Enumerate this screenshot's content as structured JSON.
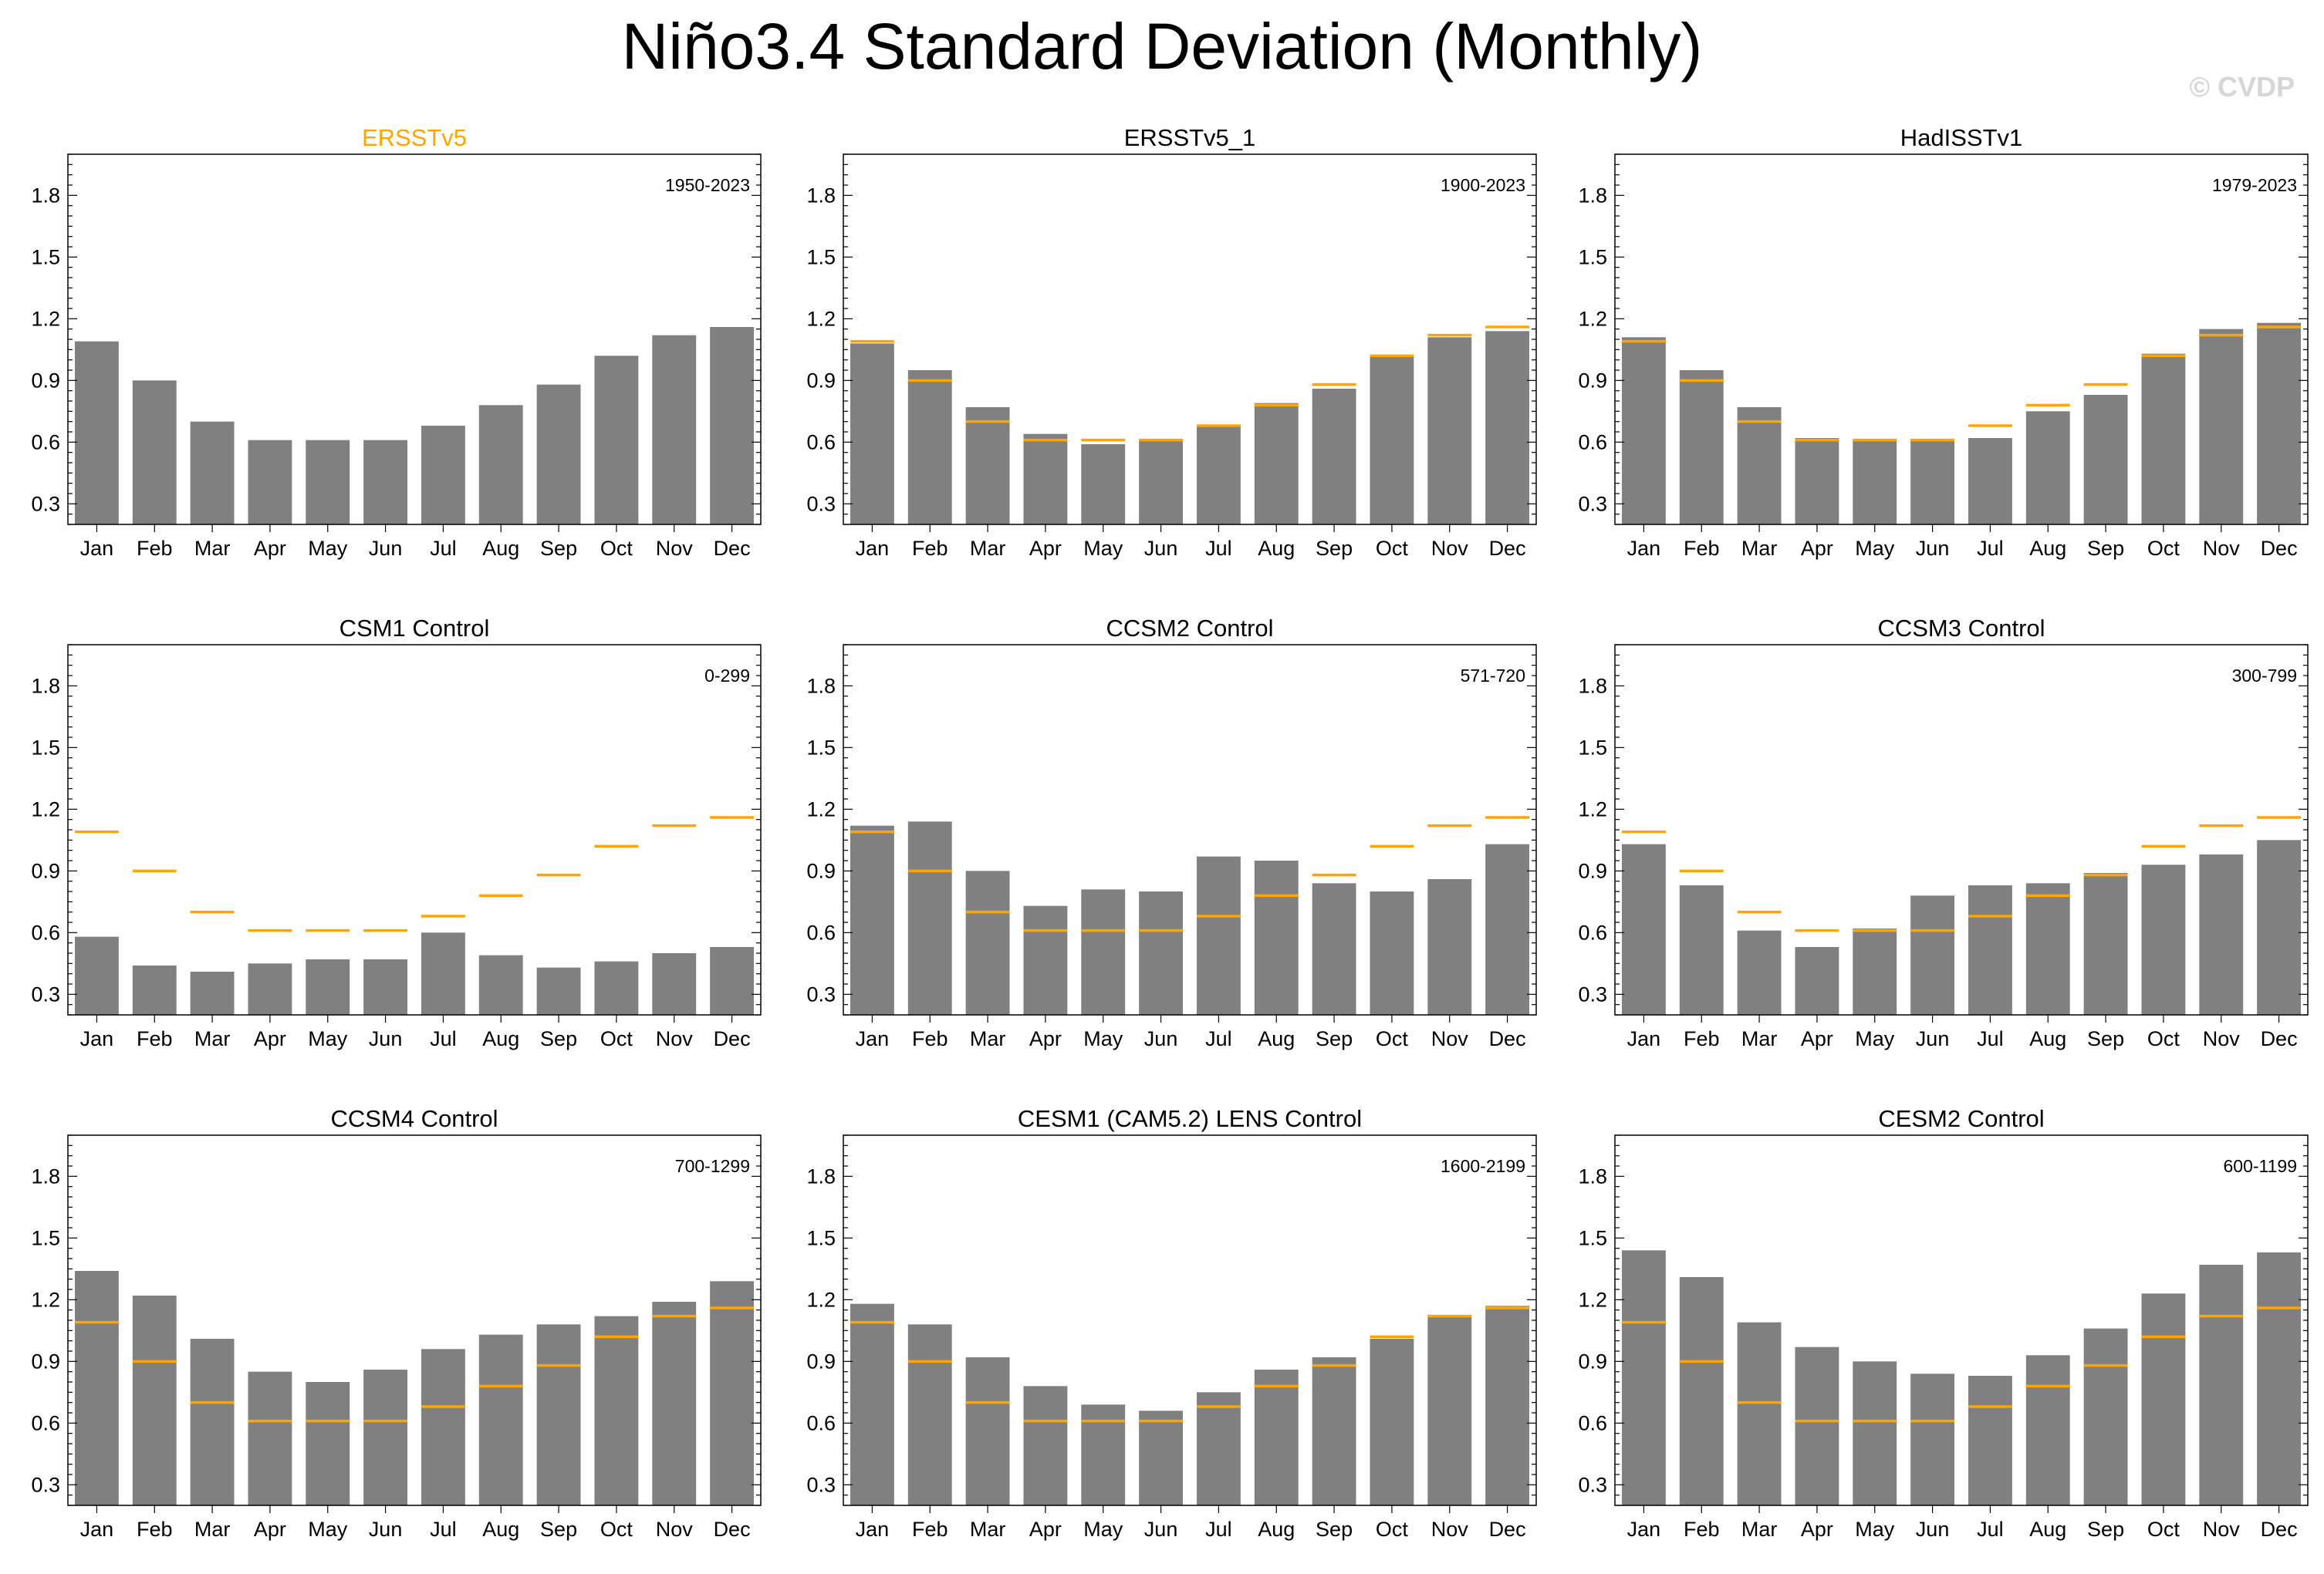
{
  "title": "Niño3.4 Standard Deviation (Monthly)",
  "watermark": "© CVDP",
  "colors": {
    "bar": "#808080",
    "reference": "#FFA500",
    "axis": "#000000"
  },
  "chart_data": [
    {
      "type": "bar",
      "title": "ERSSTv5",
      "period": "1950-2023",
      "title_color": "#FFA500",
      "categories": [
        "Jan",
        "Feb",
        "Mar",
        "Apr",
        "May",
        "Jun",
        "Jul",
        "Aug",
        "Sep",
        "Oct",
        "Nov",
        "Dec"
      ],
      "values": [
        1.09,
        0.9,
        0.7,
        0.61,
        0.61,
        0.61,
        0.68,
        0.78,
        0.88,
        1.02,
        1.12,
        1.16
      ],
      "reference": null,
      "yticks": [
        "0.3",
        "0.6",
        "0.9",
        "1.2",
        "1.5",
        "1.8"
      ],
      "ylim": [
        0.2,
        2.0
      ]
    },
    {
      "type": "bar",
      "title": "ERSSTv5_1",
      "period": "1900-2023",
      "title_color": "#000000",
      "categories": [
        "Jan",
        "Feb",
        "Mar",
        "Apr",
        "May",
        "Jun",
        "Jul",
        "Aug",
        "Sep",
        "Oct",
        "Nov",
        "Dec"
      ],
      "values": [
        1.08,
        0.95,
        0.77,
        0.64,
        0.59,
        0.61,
        0.68,
        0.79,
        0.86,
        1.02,
        1.11,
        1.14
      ],
      "reference": [
        1.09,
        0.9,
        0.7,
        0.61,
        0.61,
        0.61,
        0.68,
        0.78,
        0.88,
        1.02,
        1.12,
        1.16
      ],
      "yticks": [
        "0.3",
        "0.6",
        "0.9",
        "1.2",
        "1.5",
        "1.8"
      ],
      "ylim": [
        0.2,
        2.0
      ]
    },
    {
      "type": "bar",
      "title": "HadISSTv1",
      "period": "1979-2023",
      "title_color": "#000000",
      "categories": [
        "Jan",
        "Feb",
        "Mar",
        "Apr",
        "May",
        "Jun",
        "Jul",
        "Aug",
        "Sep",
        "Oct",
        "Nov",
        "Dec"
      ],
      "values": [
        1.11,
        0.95,
        0.77,
        0.62,
        0.61,
        0.61,
        0.62,
        0.75,
        0.83,
        1.03,
        1.15,
        1.18
      ],
      "reference": [
        1.09,
        0.9,
        0.7,
        0.61,
        0.61,
        0.61,
        0.68,
        0.78,
        0.88,
        1.02,
        1.12,
        1.16
      ],
      "yticks": [
        "0.3",
        "0.6",
        "0.9",
        "1.2",
        "1.5",
        "1.8"
      ],
      "ylim": [
        0.2,
        2.0
      ]
    },
    {
      "type": "bar",
      "title": "CSM1 Control",
      "period": "0-299",
      "title_color": "#000000",
      "categories": [
        "Jan",
        "Feb",
        "Mar",
        "Apr",
        "May",
        "Jun",
        "Jul",
        "Aug",
        "Sep",
        "Oct",
        "Nov",
        "Dec"
      ],
      "values": [
        0.58,
        0.44,
        0.41,
        0.45,
        0.47,
        0.47,
        0.6,
        0.49,
        0.43,
        0.46,
        0.5,
        0.53
      ],
      "reference": [
        1.09,
        0.9,
        0.7,
        0.61,
        0.61,
        0.61,
        0.68,
        0.78,
        0.88,
        1.02,
        1.12,
        1.16
      ],
      "yticks": [
        "0.3",
        "0.6",
        "0.9",
        "1.2",
        "1.5",
        "1.8"
      ],
      "ylim": [
        0.2,
        2.0
      ]
    },
    {
      "type": "bar",
      "title": "CCSM2 Control",
      "period": "571-720",
      "title_color": "#000000",
      "categories": [
        "Jan",
        "Feb",
        "Mar",
        "Apr",
        "May",
        "Jun",
        "Jul",
        "Aug",
        "Sep",
        "Oct",
        "Nov",
        "Dec"
      ],
      "values": [
        1.12,
        1.14,
        0.9,
        0.73,
        0.81,
        0.8,
        0.97,
        0.95,
        0.84,
        0.8,
        0.86,
        1.03
      ],
      "reference": [
        1.09,
        0.9,
        0.7,
        0.61,
        0.61,
        0.61,
        0.68,
        0.78,
        0.88,
        1.02,
        1.12,
        1.16
      ],
      "yticks": [
        "0.3",
        "0.6",
        "0.9",
        "1.2",
        "1.5",
        "1.8"
      ],
      "ylim": [
        0.2,
        2.0
      ]
    },
    {
      "type": "bar",
      "title": "CCSM3 Control",
      "period": "300-799",
      "title_color": "#000000",
      "categories": [
        "Jan",
        "Feb",
        "Mar",
        "Apr",
        "May",
        "Jun",
        "Jul",
        "Aug",
        "Sep",
        "Oct",
        "Nov",
        "Dec"
      ],
      "values": [
        1.03,
        0.83,
        0.61,
        0.53,
        0.62,
        0.78,
        0.83,
        0.84,
        0.89,
        0.93,
        0.98,
        1.05
      ],
      "reference": [
        1.09,
        0.9,
        0.7,
        0.61,
        0.61,
        0.61,
        0.68,
        0.78,
        0.88,
        1.02,
        1.12,
        1.16
      ],
      "yticks": [
        "0.3",
        "0.6",
        "0.9",
        "1.2",
        "1.5",
        "1.8"
      ],
      "ylim": [
        0.2,
        2.0
      ]
    },
    {
      "type": "bar",
      "title": "CCSM4 Control",
      "period": "700-1299",
      "title_color": "#000000",
      "categories": [
        "Jan",
        "Feb",
        "Mar",
        "Apr",
        "May",
        "Jun",
        "Jul",
        "Aug",
        "Sep",
        "Oct",
        "Nov",
        "Dec"
      ],
      "values": [
        1.34,
        1.22,
        1.01,
        0.85,
        0.8,
        0.86,
        0.96,
        1.03,
        1.08,
        1.12,
        1.19,
        1.29
      ],
      "reference": [
        1.09,
        0.9,
        0.7,
        0.61,
        0.61,
        0.61,
        0.68,
        0.78,
        0.88,
        1.02,
        1.12,
        1.16
      ],
      "yticks": [
        "0.3",
        "0.6",
        "0.9",
        "1.2",
        "1.5",
        "1.8"
      ],
      "ylim": [
        0.2,
        2.0
      ]
    },
    {
      "type": "bar",
      "title": "CESM1 (CAM5.2) LENS Control",
      "period": "1600-2199",
      "title_color": "#000000",
      "categories": [
        "Jan",
        "Feb",
        "Mar",
        "Apr",
        "May",
        "Jun",
        "Jul",
        "Aug",
        "Sep",
        "Oct",
        "Nov",
        "Dec"
      ],
      "values": [
        1.18,
        1.08,
        0.92,
        0.78,
        0.69,
        0.66,
        0.75,
        0.86,
        0.92,
        1.01,
        1.12,
        1.17
      ],
      "reference": [
        1.09,
        0.9,
        0.7,
        0.61,
        0.61,
        0.61,
        0.68,
        0.78,
        0.88,
        1.02,
        1.12,
        1.16
      ],
      "yticks": [
        "0.3",
        "0.6",
        "0.9",
        "1.2",
        "1.5",
        "1.8"
      ],
      "ylim": [
        0.2,
        2.0
      ]
    },
    {
      "type": "bar",
      "title": "CESM2 Control",
      "period": "600-1199",
      "title_color": "#000000",
      "categories": [
        "Jan",
        "Feb",
        "Mar",
        "Apr",
        "May",
        "Jun",
        "Jul",
        "Aug",
        "Sep",
        "Oct",
        "Nov",
        "Dec"
      ],
      "values": [
        1.44,
        1.31,
        1.09,
        0.97,
        0.9,
        0.84,
        0.83,
        0.93,
        1.06,
        1.23,
        1.37,
        1.43
      ],
      "reference": [
        1.09,
        0.9,
        0.7,
        0.61,
        0.61,
        0.61,
        0.68,
        0.78,
        0.88,
        1.02,
        1.12,
        1.16
      ],
      "yticks": [
        "0.3",
        "0.6",
        "0.9",
        "1.2",
        "1.5",
        "1.8"
      ],
      "ylim": [
        0.2,
        2.0
      ]
    }
  ]
}
